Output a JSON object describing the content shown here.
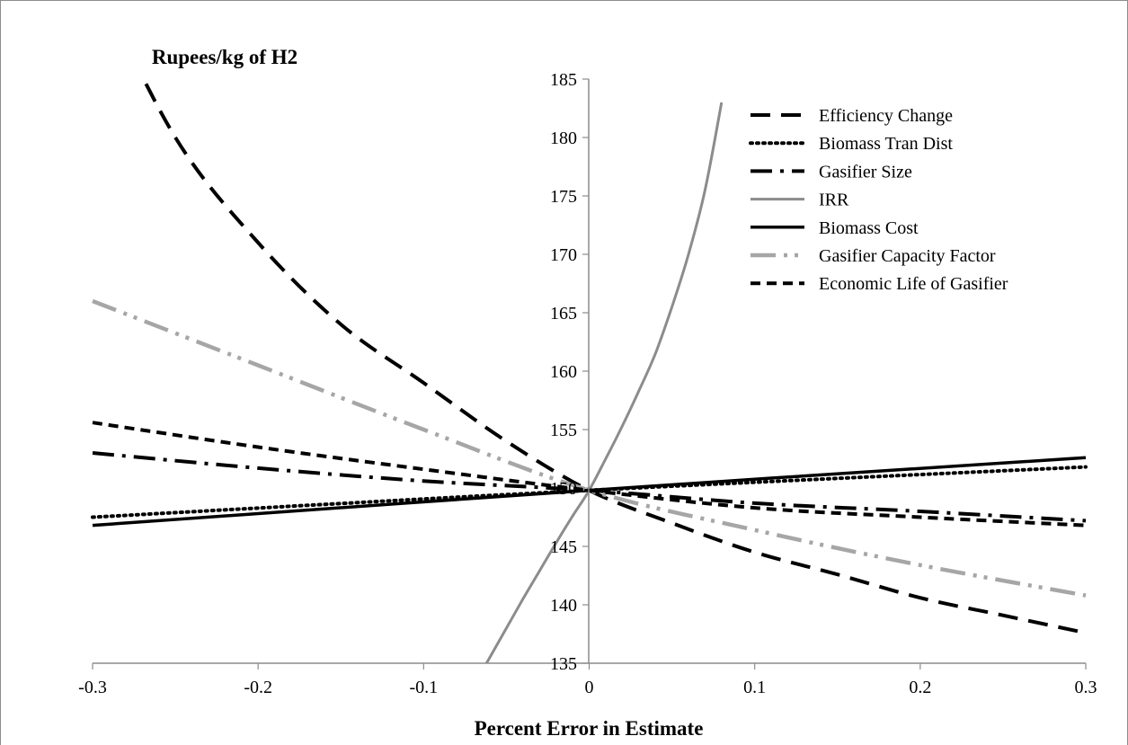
{
  "chart_data": {
    "type": "line",
    "title": "Rupees/kg of H2",
    "xlabel": "Percent Error in Estimate",
    "ylabel": "",
    "xlim": [
      -0.3,
      0.3
    ],
    "ylim": [
      135,
      185
    ],
    "x_ticks": [
      "-0.3",
      "-0.2",
      "-0.1",
      "0",
      "0.1",
      "0.2",
      "0.3"
    ],
    "y_ticks": [
      "135",
      "140",
      "145",
      "150",
      "155",
      "160",
      "165",
      "170",
      "175",
      "180",
      "185"
    ],
    "grid": false,
    "legend_position": "top-right",
    "series": [
      {
        "name": "Efficiency Change",
        "color": "#000000",
        "style": "long-dash",
        "x": [
          -0.3,
          -0.25,
          -0.2,
          -0.15,
          -0.1,
          -0.05,
          0,
          0.05,
          0.1,
          0.15,
          0.2,
          0.25,
          0.3
        ],
        "y": [
          194,
          180,
          171,
          164,
          159,
          154,
          149.8,
          147,
          144.5,
          142.6,
          140.6,
          139.1,
          137.6
        ]
      },
      {
        "name": "Biomass Tran Dist",
        "color": "#000000",
        "style": "dotted",
        "x": [
          -0.3,
          0,
          0.3
        ],
        "y": [
          147.5,
          149.8,
          151.8
        ]
      },
      {
        "name": "Gasifier Size",
        "color": "#000000",
        "style": "dash-dot",
        "x": [
          -0.3,
          -0.2,
          -0.1,
          0,
          0.1,
          0.2,
          0.3
        ],
        "y": [
          153,
          151.7,
          150.6,
          149.8,
          148.7,
          148,
          147.2
        ]
      },
      {
        "name": "IRR",
        "color": "#8c8c8c",
        "style": "solid",
        "x": [
          -0.07,
          -0.06,
          -0.05,
          -0.04,
          -0.03,
          -0.02,
          -0.01,
          0,
          0.01,
          0.02,
          0.03,
          0.04,
          0.05,
          0.06,
          0.07,
          0.08
        ],
        "y": [
          133,
          135.5,
          138,
          140.5,
          142.9,
          145.3,
          147.6,
          149.8,
          152.5,
          155.3,
          158.3,
          161.5,
          165.5,
          170,
          175.5,
          183
        ]
      },
      {
        "name": "Biomass Cost",
        "color": "#000000",
        "style": "solid",
        "x": [
          -0.3,
          0,
          0.3
        ],
        "y": [
          146.8,
          149.8,
          152.6
        ]
      },
      {
        "name": "Gasifier Capacity Factor",
        "color": "#a6a6a6",
        "style": "long-dash-dot-dot",
        "x": [
          -0.3,
          -0.2,
          -0.1,
          0,
          0.1,
          0.2,
          0.3
        ],
        "y": [
          166,
          160.5,
          155,
          149.8,
          146.4,
          143.4,
          140.8
        ]
      },
      {
        "name": "Economic Life of Gasifier",
        "color": "#000000",
        "style": "short-dash",
        "x": [
          -0.3,
          -0.2,
          -0.1,
          0,
          0.1,
          0.2,
          0.3
        ],
        "y": [
          155.6,
          153.5,
          151.6,
          149.8,
          148.3,
          147.5,
          146.8
        ]
      }
    ]
  }
}
